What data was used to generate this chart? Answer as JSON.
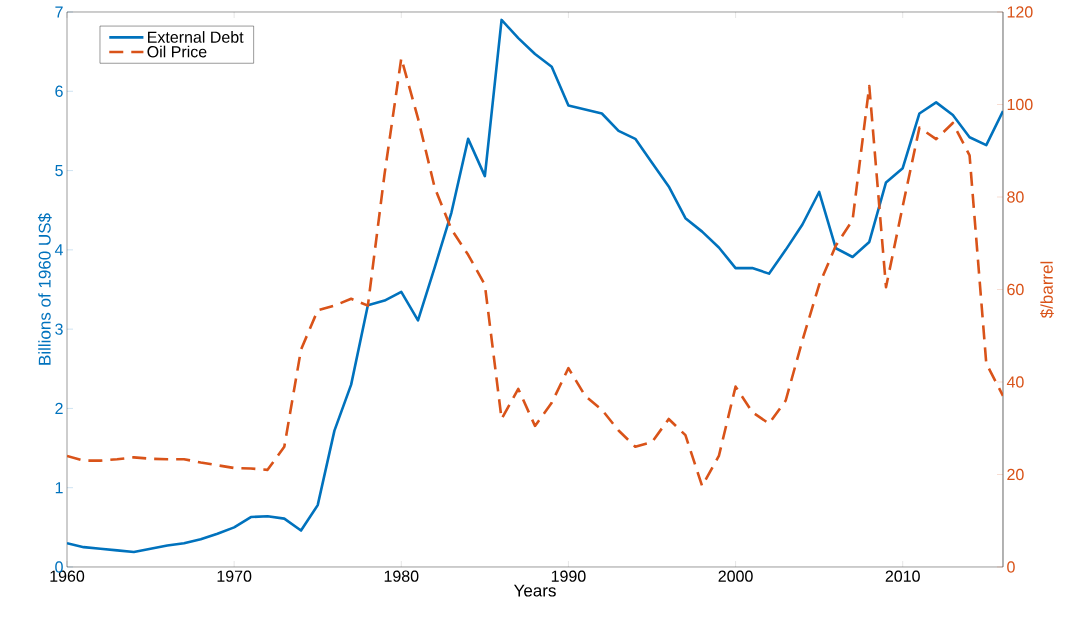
{
  "chart_data": {
    "type": "line",
    "xlabel": "Years",
    "ylabel": "Billions of 1960 US$",
    "y2label": "$/barrel",
    "x": [
      1960,
      1961,
      1962,
      1963,
      1964,
      1965,
      1966,
      1967,
      1968,
      1969,
      1970,
      1971,
      1972,
      1973,
      1974,
      1975,
      1976,
      1977,
      1978,
      1979,
      1980,
      1981,
      1982,
      1983,
      1984,
      1985,
      1986,
      1987,
      1988,
      1989,
      1990,
      1991,
      1992,
      1993,
      1994,
      1995,
      1996,
      1997,
      1998,
      1999,
      2000,
      2001,
      2002,
      2003,
      2004,
      2005,
      2006,
      2007,
      2008,
      2009,
      2010,
      2011,
      2012,
      2013,
      2014,
      2015,
      2016
    ],
    "series": [
      {
        "name": "External Debt",
        "color": "#0072bd",
        "line_style": "solid",
        "values": [
          0.3,
          0.25,
          0.23,
          0.21,
          0.19,
          0.23,
          0.27,
          0.3,
          0.35,
          0.42,
          0.5,
          0.63,
          0.64,
          0.61,
          0.46,
          0.78,
          1.72,
          2.3,
          3.3,
          3.36,
          3.47,
          3.11,
          3.78,
          4.47,
          5.4,
          4.93,
          6.9,
          6.67,
          6.47,
          6.31,
          5.82,
          5.77,
          5.72,
          5.5,
          5.4,
          5.1,
          4.8,
          4.4,
          4.23,
          4.03,
          3.77,
          3.77,
          3.7,
          4.0,
          4.32,
          4.73,
          4.02,
          3.91,
          4.1,
          4.85,
          5.03,
          5.72,
          5.86,
          5.7,
          5.42,
          5.32,
          5.75
        ]
      },
      {
        "name": "Oil Price",
        "color": "#d95319",
        "line_style": "dashed",
        "axis": "y2",
        "values": [
          24,
          23,
          23,
          23.3,
          23.7,
          23.4,
          23.3,
          23.3,
          22.6,
          22,
          21.4,
          21.3,
          21,
          26,
          47,
          55.5,
          56.5,
          58,
          56.5,
          85,
          110,
          97,
          82,
          73,
          67.5,
          61,
          32,
          38.5,
          30.5,
          35.5,
          43,
          37,
          34,
          29.5,
          26,
          27,
          32,
          28.5,
          17.5,
          24,
          39,
          33.5,
          31,
          36,
          49,
          61,
          69.5,
          75,
          104,
          60.5,
          78,
          95,
          92.5,
          96,
          89,
          44,
          37
        ]
      }
    ],
    "xlim": [
      1960,
      2016
    ],
    "xticks": [
      1960,
      1970,
      1980,
      1990,
      2000,
      2010
    ],
    "ylim": [
      0,
      7
    ],
    "yticks": [
      0,
      1,
      2,
      3,
      4,
      5,
      6,
      7
    ],
    "y2lim": [
      0,
      120
    ],
    "y2ticks": [
      0,
      20,
      40,
      60,
      80,
      100,
      120
    ],
    "legend": "top left",
    "grid": false
  }
}
